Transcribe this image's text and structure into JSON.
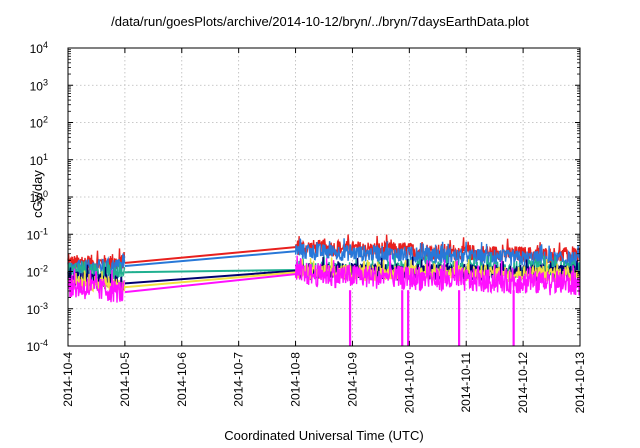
{
  "chart_data": {
    "type": "line",
    "title": "/data/run/goesPlots/archive/2014-10-12/bryn/../bryn/7daysEarthData.plot",
    "xlabel": "Coordinated Universal Time (UTC)",
    "ylabel": "cGy/day",
    "x_ticks": [
      "2014-10-4",
      "2014-10-5",
      "2014-10-6",
      "2014-10-7",
      "2014-10-8",
      "2014-10-9",
      "2014-10-10",
      "2014-10-11",
      "2014-10-12",
      "2014-10-13"
    ],
    "xlim": [
      "2014-10-04",
      "2014-10-13"
    ],
    "ylim": [
      0.0001,
      10000
    ],
    "yscale": "log",
    "y_ticks": [
      {
        "base": "10",
        "exp": "-4"
      },
      {
        "base": "10",
        "exp": "-3"
      },
      {
        "base": "10",
        "exp": "-2"
      },
      {
        "base": "10",
        "exp": "-1"
      },
      {
        "base": "10",
        "exp": "0"
      },
      {
        "base": "10",
        "exp": "1"
      },
      {
        "base": "10",
        "exp": "2"
      },
      {
        "base": "10",
        "exp": "3"
      },
      {
        "base": "10",
        "exp": "4"
      }
    ],
    "grid": true,
    "data_gap": [
      "2014-10-05",
      "2014-10-08"
    ],
    "series": [
      {
        "color": "#e8201e",
        "values": [
          {
            "x": "2014-10-04",
            "y": 0.017
          },
          {
            "x": "2014-10-05",
            "y": 0.017
          },
          {
            "x": "2014-10-08",
            "y": 0.045
          },
          {
            "x": "2014-10-13",
            "y": 0.026
          }
        ]
      },
      {
        "color": "#2878d8",
        "values": [
          {
            "x": "2014-10-04",
            "y": 0.012
          },
          {
            "x": "2014-10-05",
            "y": 0.014
          },
          {
            "x": "2014-10-08",
            "y": 0.035
          },
          {
            "x": "2014-10-13",
            "y": 0.02
          }
        ]
      },
      {
        "color": "#20b090",
        "values": [
          {
            "x": "2014-10-04",
            "y": 0.01
          },
          {
            "x": "2014-10-05",
            "y": 0.0095
          },
          {
            "x": "2014-10-08",
            "y": 0.011
          },
          {
            "x": "2014-10-13",
            "y": 0.012
          }
        ]
      },
      {
        "color": "#000070",
        "values": [
          {
            "x": "2014-10-04",
            "y": 0.0065
          },
          {
            "x": "2014-10-05",
            "y": 0.0048
          },
          {
            "x": "2014-10-08",
            "y": 0.0105
          },
          {
            "x": "2014-10-13",
            "y": 0.009
          }
        ]
      },
      {
        "color": "#f0e040",
        "values": [
          {
            "x": "2014-10-04",
            "y": 0.006
          },
          {
            "x": "2014-10-05",
            "y": 0.0038
          },
          {
            "x": "2014-10-08",
            "y": 0.0095
          },
          {
            "x": "2014-10-13",
            "y": 0.0085
          }
        ]
      },
      {
        "color": "#ff10ff",
        "values": [
          {
            "x": "2014-10-04",
            "y": 0.004
          },
          {
            "x": "2014-10-05",
            "y": 0.0028
          },
          {
            "x": "2014-10-08",
            "y": 0.0085
          },
          {
            "x": "2014-10-13",
            "y": 0.0045
          }
        ],
        "dropouts": [
          "2014-10-08 23:00",
          "2014-10-09 21:00",
          "2014-10-09 23:30",
          "2014-10-10 21:00",
          "2014-10-11 20:00"
        ]
      }
    ]
  }
}
